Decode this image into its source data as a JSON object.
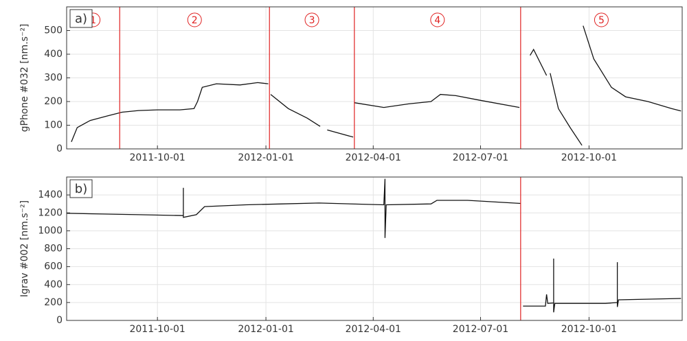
{
  "chart_data": [
    {
      "type": "line",
      "panel_label": "a)",
      "ylabel": "gPhone #032 [nm.s⁻²]",
      "xlim": [
        "2011-07-16",
        "2012-12-19"
      ],
      "xticks": [
        "2011-10-01",
        "2012-01-01",
        "2012-04-01",
        "2012-07-01",
        "2012-10-01"
      ],
      "ylim": [
        0,
        600
      ],
      "yticks": [
        0,
        100,
        200,
        300,
        400,
        500
      ],
      "grid": true,
      "breaks": [
        "2011-08-30",
        "2012-01-04",
        "2012-03-16",
        "2012-08-04"
      ],
      "break_color": "#e02020",
      "regions": [
        "1",
        "2",
        "3",
        "4",
        "5"
      ],
      "series": [
        {
          "name": "gPhone #032",
          "color": "#111111",
          "x": [
            "2011-07-20",
            "2011-07-25",
            "2011-08-05",
            "2011-08-20",
            "2011-09-01",
            "2011-09-15",
            "2011-10-01",
            "2011-10-20",
            "2011-11-01",
            "2011-11-04",
            "2011-11-08",
            "2011-11-20",
            "2011-12-10",
            "2011-12-25",
            "2012-01-03",
            null,
            "2012-01-05",
            "2012-01-20",
            "2012-02-05",
            "2012-02-16",
            null,
            "2012-02-22",
            "2012-03-15",
            null,
            "2012-03-16",
            "2012-04-10",
            "2012-05-01",
            "2012-05-20",
            "2012-05-28",
            "2012-06-10",
            "2012-07-01",
            "2012-08-03",
            null,
            "2012-08-12",
            "2012-08-15",
            "2012-08-26",
            null,
            "2012-08-29",
            "2012-09-05",
            "2012-09-15",
            "2012-09-25",
            null,
            "2012-09-26",
            "2012-10-05",
            "2012-10-20",
            "2012-11-01",
            "2012-11-20",
            "2012-12-10",
            "2012-12-18"
          ],
          "values": [
            30,
            90,
            120,
            140,
            155,
            162,
            165,
            165,
            170,
            200,
            260,
            275,
            270,
            280,
            275,
            null,
            230,
            170,
            130,
            95,
            null,
            80,
            50,
            null,
            195,
            175,
            190,
            200,
            230,
            225,
            205,
            175,
            null,
            395,
            420,
            310,
            null,
            320,
            170,
            90,
            15,
            null,
            520,
            380,
            260,
            220,
            200,
            170,
            160
          ]
        }
      ]
    },
    {
      "type": "line",
      "panel_label": "b)",
      "ylabel": "Igrav #002 [nm.s⁻²]",
      "xlim": [
        "2011-07-16",
        "2012-12-19"
      ],
      "xticks": [
        "2011-10-01",
        "2012-01-01",
        "2012-04-01",
        "2012-07-01",
        "2012-10-01"
      ],
      "ylim": [
        0,
        1600
      ],
      "yticks": [
        0,
        200,
        400,
        600,
        800,
        1000,
        1200,
        1400
      ],
      "grid": true,
      "breaks": [
        "2012-08-04"
      ],
      "break_color": "#e02020",
      "series": [
        {
          "name": "Igrav #002",
          "color": "#111111",
          "x": [
            "2011-07-16",
            "2011-09-15",
            "2011-10-23",
            "2011-10-23",
            "2011-10-23",
            "2011-11-03",
            "2011-11-10",
            "2011-12-15",
            "2012-01-15",
            "2012-02-15",
            "2012-04-10",
            "2012-04-11",
            "2012-04-11",
            "2012-04-12",
            "2012-05-20",
            "2012-05-25",
            "2012-06-20",
            "2012-08-04",
            null,
            "2012-08-06",
            "2012-08-25",
            "2012-08-26",
            "2012-08-27",
            "2012-09-01",
            "2012-09-01",
            "2012-09-01",
            "2012-09-02",
            "2012-10-15",
            "2012-10-25",
            "2012-10-25",
            "2012-10-25",
            "2012-10-26",
            "2012-12-18"
          ],
          "values": [
            1195,
            1180,
            1170,
            1480,
            1150,
            1180,
            1270,
            1290,
            1300,
            1310,
            1290,
            1580,
            920,
            1290,
            1300,
            1340,
            1340,
            1305,
            null,
            160,
            160,
            290,
            190,
            195,
            690,
            90,
            190,
            190,
            200,
            650,
            150,
            230,
            245
          ]
        }
      ]
    }
  ]
}
